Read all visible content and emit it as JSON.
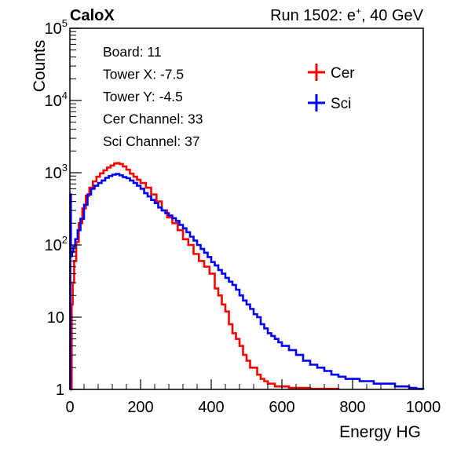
{
  "header": {
    "brand": "CaloX",
    "run_info_prefix": "Run 1502: e",
    "run_info_sup": "+",
    "run_info_suffix": ", 40 GeV"
  },
  "info_box": {
    "lines": [
      "Board: 11",
      "Tower X: -7.5",
      "Tower Y: -4.5",
      "Cer Channel: 33",
      "Sci Channel: 37"
    ]
  },
  "chart_data": {
    "type": "line",
    "title": "",
    "xlabel": "Energy HG",
    "ylabel": "Counts",
    "xlim": [
      0,
      1000
    ],
    "ylim": [
      1,
      100000
    ],
    "yscale": "log",
    "x_ticks": [
      "0",
      "200",
      "400",
      "600",
      "800",
      "1000"
    ],
    "y_ticks": [
      {
        "value": 1,
        "label": "1"
      },
      {
        "value": 10,
        "label": "10"
      },
      {
        "value": 100,
        "label": "10",
        "sup": "2"
      },
      {
        "value": 1000,
        "label": "10",
        "sup": "3"
      },
      {
        "value": 10000,
        "label": "10",
        "sup": "4"
      },
      {
        "value": 100000,
        "label": "10",
        "sup": "5"
      }
    ],
    "grid": false,
    "legend_position": "top-right",
    "series": [
      {
        "name": "Cer",
        "color": "#ff0000",
        "points": [
          [
            0,
            1
          ],
          [
            4,
            1
          ],
          [
            5,
            15
          ],
          [
            8,
            30
          ],
          [
            12,
            60
          ],
          [
            18,
            110
          ],
          [
            25,
            200
          ],
          [
            35,
            320
          ],
          [
            45,
            480
          ],
          [
            55,
            620
          ],
          [
            65,
            760
          ],
          [
            75,
            880
          ],
          [
            85,
            980
          ],
          [
            95,
            1080
          ],
          [
            105,
            1180
          ],
          [
            115,
            1260
          ],
          [
            125,
            1340
          ],
          [
            132,
            1360
          ],
          [
            140,
            1320
          ],
          [
            150,
            1220
          ],
          [
            160,
            1100
          ],
          [
            170,
            970
          ],
          [
            180,
            880
          ],
          [
            190,
            800
          ],
          [
            200,
            720
          ],
          [
            215,
            620
          ],
          [
            230,
            500
          ],
          [
            245,
            400
          ],
          [
            260,
            300
          ],
          [
            275,
            240
          ],
          [
            290,
            200
          ],
          [
            305,
            160
          ],
          [
            320,
            120
          ],
          [
            335,
            100
          ],
          [
            350,
            75
          ],
          [
            365,
            60
          ],
          [
            380,
            50
          ],
          [
            395,
            40
          ],
          [
            410,
            25
          ],
          [
            420,
            20
          ],
          [
            430,
            15
          ],
          [
            440,
            12
          ],
          [
            450,
            8
          ],
          [
            460,
            6
          ],
          [
            470,
            5
          ],
          [
            480,
            4
          ],
          [
            490,
            3
          ],
          [
            500,
            2.5
          ],
          [
            510,
            2
          ],
          [
            520,
            2
          ],
          [
            530,
            1.6
          ],
          [
            540,
            1.4
          ],
          [
            550,
            1.3
          ],
          [
            560,
            1.2
          ],
          [
            580,
            1.1
          ],
          [
            620,
            1.05
          ],
          [
            680,
            1.02
          ],
          [
            760,
            1
          ]
        ]
      },
      {
        "name": "Sci",
        "color": "#0000ff",
        "points": [
          [
            0,
            1
          ],
          [
            1,
            500
          ],
          [
            3,
            70
          ],
          [
            6,
            80
          ],
          [
            10,
            95
          ],
          [
            15,
            120
          ],
          [
            22,
            160
          ],
          [
            30,
            230
          ],
          [
            40,
            360
          ],
          [
            50,
            500
          ],
          [
            60,
            600
          ],
          [
            70,
            660
          ],
          [
            80,
            720
          ],
          [
            90,
            780
          ],
          [
            100,
            850
          ],
          [
            110,
            900
          ],
          [
            120,
            940
          ],
          [
            130,
            960
          ],
          [
            140,
            920
          ],
          [
            150,
            870
          ],
          [
            160,
            840
          ],
          [
            170,
            780
          ],
          [
            180,
            720
          ],
          [
            190,
            660
          ],
          [
            200,
            600
          ],
          [
            210,
            520
          ],
          [
            220,
            470
          ],
          [
            230,
            420
          ],
          [
            240,
            380
          ],
          [
            250,
            330
          ],
          [
            260,
            300
          ],
          [
            270,
            275
          ],
          [
            280,
            255
          ],
          [
            290,
            235
          ],
          [
            300,
            215
          ],
          [
            310,
            190
          ],
          [
            320,
            170
          ],
          [
            330,
            150
          ],
          [
            340,
            130
          ],
          [
            350,
            115
          ],
          [
            360,
            100
          ],
          [
            370,
            88
          ],
          [
            380,
            78
          ],
          [
            390,
            68
          ],
          [
            400,
            58
          ],
          [
            410,
            52
          ],
          [
            420,
            45
          ],
          [
            430,
            40
          ],
          [
            440,
            35
          ],
          [
            450,
            31
          ],
          [
            460,
            28
          ],
          [
            470,
            24
          ],
          [
            480,
            20
          ],
          [
            490,
            17
          ],
          [
            500,
            15
          ],
          [
            510,
            13
          ],
          [
            520,
            11
          ],
          [
            530,
            10
          ],
          [
            540,
            8
          ],
          [
            550,
            7
          ],
          [
            560,
            6
          ],
          [
            570,
            5.5
          ],
          [
            580,
            5
          ],
          [
            590,
            4.5
          ],
          [
            600,
            4
          ],
          [
            620,
            3.5
          ],
          [
            640,
            3
          ],
          [
            660,
            2.5
          ],
          [
            680,
            2.2
          ],
          [
            700,
            2
          ],
          [
            720,
            1.8
          ],
          [
            740,
            1.6
          ],
          [
            760,
            1.5
          ],
          [
            780,
            1.4
          ],
          [
            800,
            1.4
          ],
          [
            820,
            1.3
          ],
          [
            840,
            1.3
          ],
          [
            860,
            1.2
          ],
          [
            880,
            1.2
          ],
          [
            900,
            1.2
          ],
          [
            920,
            1.1
          ],
          [
            940,
            1.1
          ],
          [
            960,
            1.05
          ],
          [
            980,
            1.02
          ],
          [
            1000,
            1
          ]
        ]
      }
    ]
  }
}
